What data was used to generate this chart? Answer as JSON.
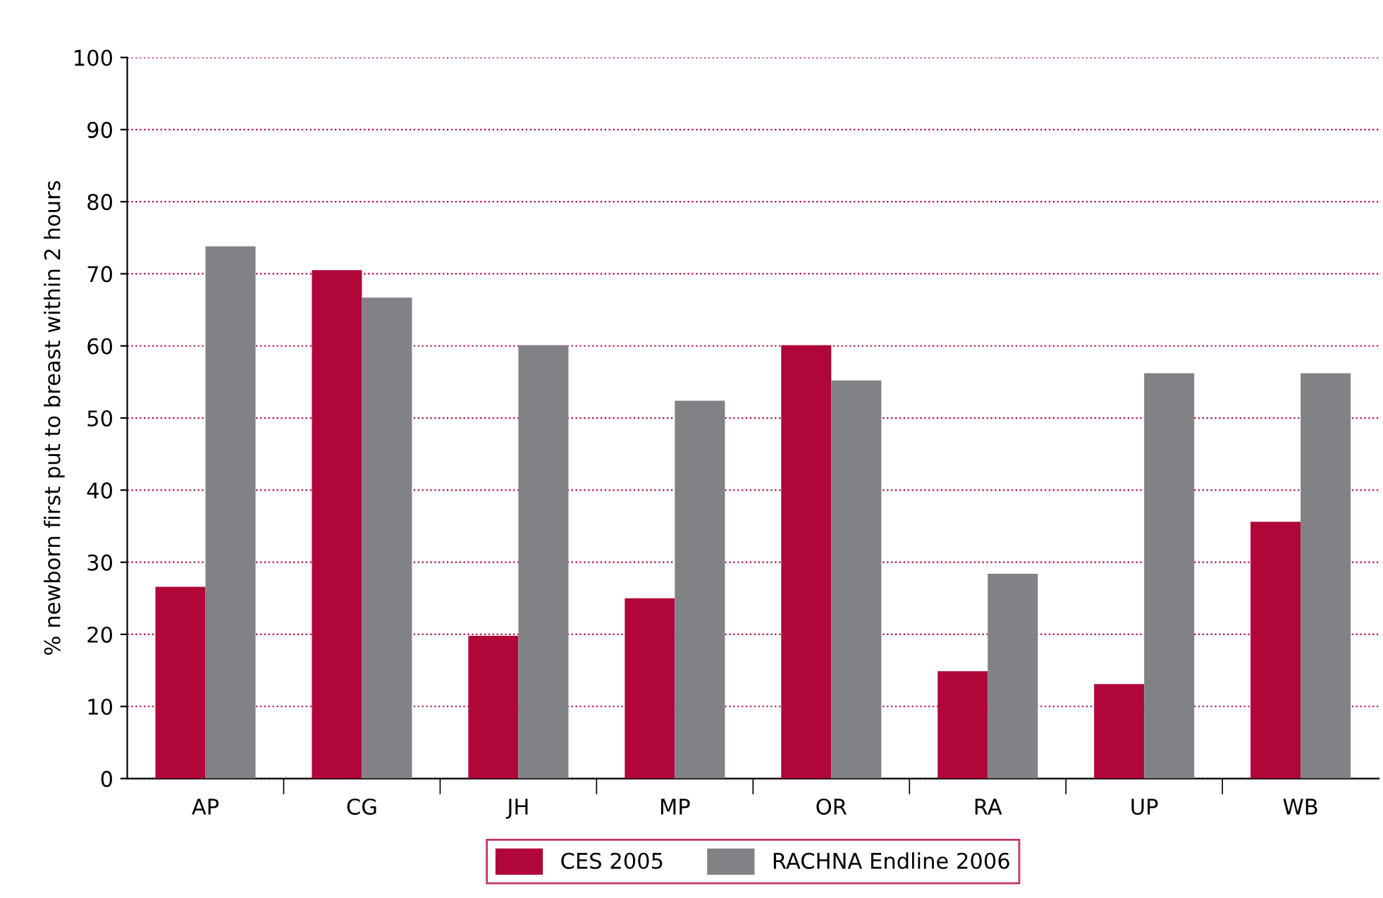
{
  "chart_data": {
    "type": "bar",
    "ylabel": "% newborn first put to breast within 2 hours",
    "categories": [
      "AP",
      "CG",
      "JH",
      "MP",
      "OR",
      "RA",
      "UP",
      "WB"
    ],
    "series": [
      {
        "name": "CES 2005",
        "color": "#b0063a",
        "values": [
          26.6,
          70.5,
          19.8,
          25.0,
          60.1,
          14.9,
          13.1,
          35.6
        ]
      },
      {
        "name": "RACHNA Endline 2006",
        "color": "#808285",
        "values": [
          73.8,
          66.7,
          60.1,
          52.4,
          55.2,
          28.4,
          56.2,
          56.2
        ]
      }
    ],
    "ylim": [
      0,
      100
    ],
    "yticks": [
      0,
      10,
      20,
      30,
      40,
      50,
      60,
      70,
      80,
      90,
      100
    ],
    "grid": "y",
    "legend": "bottom"
  }
}
